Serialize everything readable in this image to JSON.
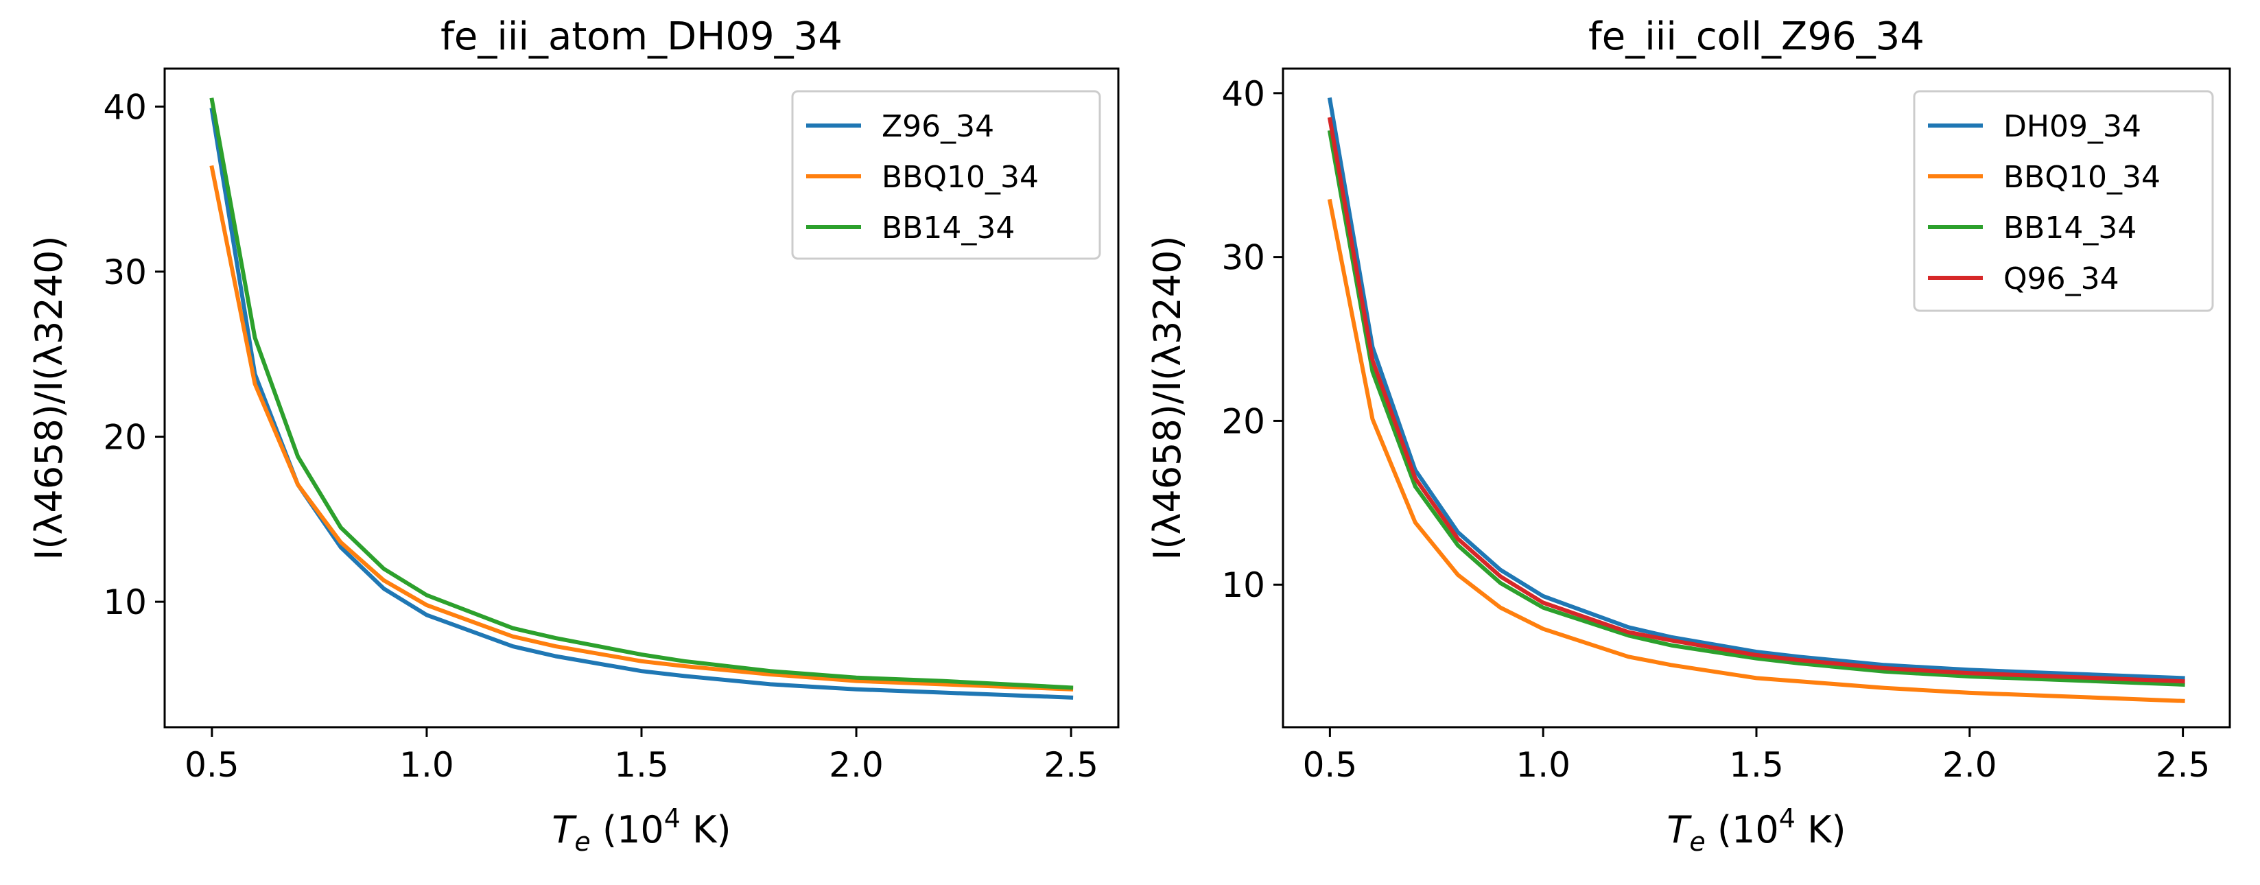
{
  "chart_data": [
    {
      "type": "line",
      "title": "fe_iii_atom_DH09_34",
      "xlabel": "T_e (10^4 K)",
      "ylabel": "I(λ4658)/I(λ3240)",
      "xlim": [
        0.39,
        2.61
      ],
      "ylim": [
        2.4,
        42.3
      ],
      "xticks": [
        "0.5",
        "1.0",
        "1.5",
        "2.0",
        "2.5"
      ],
      "yticks": [
        "10",
        "20",
        "30",
        "40"
      ],
      "legend_position": "upper-right",
      "x": [
        0.5,
        0.6,
        0.7,
        0.8,
        0.9,
        1.0,
        1.2,
        1.3,
        1.5,
        1.6,
        1.8,
        2.0,
        2.2,
        2.5
      ],
      "series": [
        {
          "name": "Z96_34",
          "color": "#1f77b4",
          "values": [
            39.8,
            23.8,
            17.1,
            13.3,
            10.8,
            9.2,
            7.3,
            6.7,
            5.8,
            5.5,
            5.0,
            4.7,
            4.5,
            4.2
          ]
        },
        {
          "name": "BBQ10_34",
          "color": "#ff7f0e",
          "values": [
            36.3,
            23.2,
            17.1,
            13.6,
            11.3,
            9.8,
            7.9,
            7.3,
            6.4,
            6.1,
            5.6,
            5.2,
            5.0,
            4.7
          ]
        },
        {
          "name": "BB14_34",
          "color": "#2ca02c",
          "values": [
            40.4,
            26.0,
            18.8,
            14.5,
            12.0,
            10.4,
            8.4,
            7.8,
            6.8,
            6.4,
            5.8,
            5.4,
            5.2,
            4.8
          ]
        }
      ]
    },
    {
      "type": "line",
      "title": "fe_iii_coll_Z96_34",
      "xlabel": "T_e (10^4 K)",
      "ylabel": "I(λ4658)/I(λ3240)",
      "xlim": [
        0.39,
        2.61
      ],
      "ylim": [
        1.3,
        41.5
      ],
      "xticks": [
        "0.5",
        "1.0",
        "1.5",
        "2.0",
        "2.5"
      ],
      "yticks": [
        "10",
        "20",
        "30",
        "40"
      ],
      "legend_position": "upper-right",
      "x": [
        0.5,
        0.6,
        0.7,
        0.8,
        0.9,
        1.0,
        1.2,
        1.3,
        1.5,
        1.6,
        1.8,
        2.0,
        2.2,
        2.5
      ],
      "series": [
        {
          "name": "DH09_34",
          "color": "#1f77b4",
          "values": [
            39.6,
            24.5,
            17.0,
            13.2,
            10.9,
            9.3,
            7.4,
            6.8,
            5.9,
            5.6,
            5.1,
            4.8,
            4.6,
            4.3
          ]
        },
        {
          "name": "BBQ10_34",
          "color": "#ff7f0e",
          "values": [
            33.4,
            20.1,
            13.8,
            10.6,
            8.6,
            7.3,
            5.6,
            5.1,
            4.3,
            4.1,
            3.7,
            3.4,
            3.2,
            2.9
          ]
        },
        {
          "name": "BB14_34",
          "color": "#2ca02c",
          "values": [
            37.6,
            23.0,
            16.0,
            12.4,
            10.1,
            8.6,
            6.9,
            6.3,
            5.5,
            5.2,
            4.7,
            4.4,
            4.2,
            3.9
          ]
        },
        {
          "name": "Q96_34",
          "color": "#d62728",
          "values": [
            38.4,
            23.7,
            16.5,
            12.8,
            10.5,
            8.9,
            7.1,
            6.6,
            5.7,
            5.4,
            4.9,
            4.6,
            4.4,
            4.1
          ]
        }
      ]
    }
  ]
}
